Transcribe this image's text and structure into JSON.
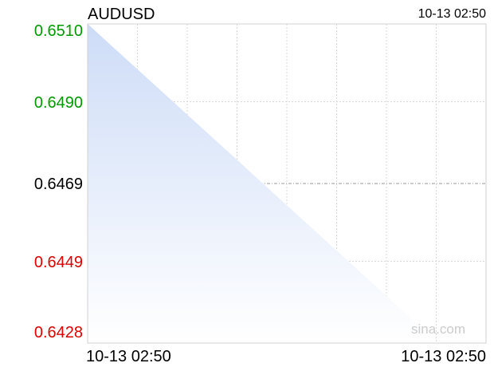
{
  "header": {
    "symbol": "AUDUSD",
    "timestamp": "10-13 02:50"
  },
  "watermark": "sina.com",
  "colors": {
    "up": "#009900",
    "down": "#dd0000",
    "neutral": "#000000",
    "area_top": "#cddcf7",
    "area_bottom": "#ffffff",
    "grid": "#d8d8d8"
  },
  "chart_data": {
    "type": "area",
    "title": "AUDUSD",
    "x": [
      "10-13 02:50",
      "10-13 02:50"
    ],
    "values": [
      0.651,
      0.6428
    ],
    "ylim": [
      0.6428,
      0.651
    ],
    "reference_value": 0.6469,
    "y_tick_labels": [
      "0.6510",
      "0.6490",
      "0.6469",
      "0.6449",
      "0.6428"
    ],
    "x_tick_labels": [
      "10-13 02:50",
      "10-13 02:50"
    ],
    "grid": true
  }
}
